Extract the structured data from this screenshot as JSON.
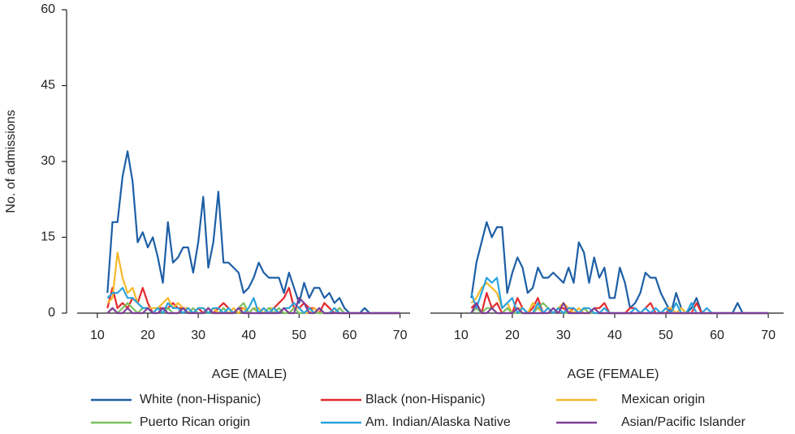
{
  "chart_data": [
    {
      "type": "line",
      "ylabel": "No. of admissions",
      "xlabel": "AGE (MALE)",
      "xlim": [
        6,
        72
      ],
      "xticks": [
        10,
        20,
        30,
        40,
        50,
        60,
        70
      ],
      "ylim": [
        0,
        60
      ],
      "yticks": [
        0,
        15,
        30,
        45,
        60
      ],
      "x": [
        12,
        13,
        14,
        15,
        16,
        17,
        18,
        19,
        20,
        21,
        22,
        23,
        24,
        25,
        26,
        27,
        28,
        29,
        30,
        31,
        32,
        33,
        34,
        35,
        36,
        37,
        38,
        39,
        40,
        41,
        42,
        43,
        44,
        45,
        46,
        47,
        48,
        49,
        50,
        51,
        52,
        53,
        54,
        55,
        56,
        57,
        58,
        59,
        60,
        61,
        62,
        63,
        64,
        65,
        66,
        67,
        68,
        69,
        70
      ],
      "series": [
        {
          "name": "White (non-Hispanic)",
          "color": "#1d5fa6",
          "values": [
            4,
            18,
            18,
            27,
            32,
            26,
            14,
            16,
            13,
            15,
            11,
            6,
            18,
            10,
            11,
            13,
            13,
            8,
            14,
            23,
            9,
            14,
            24,
            10,
            10,
            9,
            8,
            4,
            5,
            7,
            10,
            8,
            7,
            7,
            7,
            4,
            8,
            5,
            2,
            6,
            3,
            5,
            5,
            3,
            4,
            2,
            3,
            1,
            0,
            0,
            0,
            1,
            0,
            0,
            0,
            0,
            0,
            0,
            0
          ]
        },
        {
          "name": "Black (non-Hispanic)",
          "color": "#e42a2d",
          "values": [
            1,
            5,
            1,
            2,
            1,
            3,
            2,
            5,
            2,
            0,
            1,
            1,
            1,
            2,
            1,
            1,
            1,
            0,
            1,
            0,
            1,
            0,
            1,
            2,
            1,
            0,
            1,
            1,
            0,
            1,
            0,
            1,
            0,
            1,
            2,
            3,
            5,
            1,
            1,
            2,
            1,
            1,
            0,
            2,
            1,
            0,
            1,
            0,
            0,
            0,
            0,
            0,
            0,
            0,
            0,
            0,
            0,
            0,
            0
          ]
        },
        {
          "name": "Mexican origin",
          "color": "#f7b92b",
          "values": [
            2,
            3,
            12,
            7,
            4,
            5,
            2,
            1,
            1,
            1,
            1,
            2,
            3,
            1,
            2,
            1,
            1,
            0,
            1,
            1,
            0,
            1,
            0,
            1,
            0,
            1,
            0,
            1,
            0,
            1,
            1,
            0,
            1,
            1,
            0,
            1,
            0,
            1,
            1,
            0,
            0,
            1,
            0,
            0,
            0,
            1,
            0,
            0,
            0,
            0,
            0,
            0,
            0,
            0,
            0,
            0,
            0,
            0,
            0
          ]
        },
        {
          "name": "Puerto Rican origin",
          "color": "#7cc05f",
          "values": [
            0,
            1,
            0,
            1,
            2,
            1,
            0,
            1,
            1,
            0,
            1,
            0,
            1,
            0,
            0,
            1,
            0,
            1,
            0,
            0,
            1,
            0,
            0,
            1,
            0,
            0,
            1,
            2,
            0,
            1,
            0,
            0,
            1,
            0,
            1,
            0,
            0,
            1,
            0,
            0,
            1,
            0,
            0,
            0,
            0,
            0,
            1,
            0,
            0,
            0,
            0,
            0,
            0,
            0,
            0,
            0,
            0,
            0,
            0
          ]
        },
        {
          "name": "Am. Indian/Alaska Native",
          "color": "#2ba3df",
          "values": [
            3,
            4,
            4,
            5,
            3,
            3,
            2,
            1,
            1,
            0,
            1,
            0,
            2,
            1,
            1,
            0,
            1,
            0,
            1,
            1,
            0,
            1,
            1,
            0,
            1,
            0,
            1,
            0,
            1,
            3,
            0,
            1,
            0,
            1,
            0,
            1,
            1,
            2,
            1,
            0,
            1,
            0,
            1,
            0,
            0,
            1,
            0,
            0,
            0,
            0,
            0,
            0,
            0,
            0,
            0,
            0,
            0,
            0,
            0
          ]
        },
        {
          "name": "Asian/Pacific Islander",
          "color": "#7d3f98",
          "values": [
            0,
            1,
            0,
            0,
            1,
            0,
            0,
            0,
            1,
            0,
            0,
            1,
            0,
            0,
            0,
            1,
            0,
            0,
            0,
            0,
            1,
            0,
            0,
            0,
            0,
            0,
            1,
            0,
            0,
            0,
            0,
            0,
            0,
            0,
            0,
            1,
            0,
            0,
            3,
            2,
            0,
            0,
            1,
            0,
            0,
            0,
            0,
            0,
            0,
            0,
            0,
            0,
            0,
            0,
            0,
            0,
            0,
            0,
            0
          ]
        }
      ]
    },
    {
      "type": "line",
      "xlabel": "AGE (FEMALE)",
      "xlim": [
        4,
        73
      ],
      "xticks": [
        10,
        20,
        30,
        40,
        50,
        60,
        70
      ],
      "ylim": [
        0,
        60
      ],
      "x": [
        12,
        13,
        14,
        15,
        16,
        17,
        18,
        19,
        20,
        21,
        22,
        23,
        24,
        25,
        26,
        27,
        28,
        29,
        30,
        31,
        32,
        33,
        34,
        35,
        36,
        37,
        38,
        39,
        40,
        41,
        42,
        43,
        44,
        45,
        46,
        47,
        48,
        49,
        50,
        51,
        52,
        53,
        54,
        55,
        56,
        57,
        58,
        59,
        60,
        61,
        62,
        63,
        64,
        65,
        66,
        67,
        68,
        69,
        70
      ],
      "series": [
        {
          "color": "#1d5fa6",
          "values": [
            3,
            10,
            14,
            18,
            15,
            17,
            17,
            4,
            8,
            11,
            9,
            4,
            5,
            9,
            7,
            7,
            8,
            7,
            6,
            9,
            6,
            14,
            12,
            6,
            11,
            7,
            9,
            3,
            3,
            9,
            6,
            1,
            2,
            4,
            8,
            7,
            7,
            4,
            2,
            0,
            4,
            1,
            0,
            1,
            3,
            0,
            0,
            0,
            0,
            0,
            0,
            0,
            2,
            0,
            0,
            0,
            0,
            0,
            0
          ]
        },
        {
          "color": "#e42a2d",
          "values": [
            1,
            2,
            0,
            4,
            1,
            2,
            0,
            1,
            0,
            3,
            1,
            0,
            1,
            3,
            0,
            1,
            0,
            1,
            1,
            0,
            1,
            0,
            1,
            0,
            1,
            1,
            2,
            0,
            0,
            0,
            0,
            1,
            1,
            0,
            1,
            2,
            0,
            0,
            0,
            1,
            0,
            0,
            0,
            0,
            2,
            0,
            0,
            0,
            0,
            0,
            0,
            0,
            0,
            0,
            0,
            0,
            0,
            0,
            0
          ]
        },
        {
          "color": "#f7b92b",
          "values": [
            2,
            3,
            5,
            6,
            5,
            4,
            1,
            2,
            0,
            1,
            1,
            0,
            2,
            1,
            0,
            1,
            0,
            1,
            2,
            1,
            0,
            1,
            0,
            0,
            1,
            0,
            0,
            0,
            0,
            0,
            0,
            0,
            0,
            0,
            0,
            0,
            0,
            0,
            1,
            1,
            0,
            1,
            0,
            0,
            0,
            0,
            0,
            0,
            0,
            0,
            0,
            0,
            0,
            0,
            0,
            0,
            0,
            0,
            0
          ]
        },
        {
          "color": "#7cc05f",
          "values": [
            0,
            1,
            0,
            1,
            1,
            0,
            0,
            1,
            0,
            0,
            0,
            0,
            0,
            1,
            2,
            1,
            0,
            1,
            0,
            0,
            0,
            0,
            1,
            0,
            0,
            0,
            0,
            0,
            0,
            0,
            0,
            0,
            0,
            0,
            0,
            0,
            0,
            0,
            0,
            0,
            0,
            0,
            0,
            0,
            0,
            0,
            0,
            0,
            0,
            0,
            0,
            0,
            0,
            0,
            0,
            0,
            0,
            0,
            0
          ]
        },
        {
          "color": "#2ba3df",
          "values": [
            4,
            1,
            4,
            7,
            6,
            7,
            1,
            2,
            3,
            0,
            1,
            0,
            0,
            2,
            0,
            1,
            0,
            1,
            0,
            1,
            1,
            0,
            1,
            1,
            0,
            0,
            1,
            0,
            0,
            0,
            0,
            0,
            1,
            0,
            1,
            0,
            1,
            0,
            1,
            0,
            2,
            0,
            0,
            2,
            0,
            0,
            1,
            0,
            0,
            0,
            0,
            0,
            0,
            0,
            0,
            0,
            0,
            0,
            0
          ]
        },
        {
          "color": "#7d3f98",
          "values": [
            0,
            2,
            0,
            0,
            1,
            0,
            0,
            0,
            0,
            1,
            0,
            0,
            0,
            0,
            0,
            0,
            1,
            0,
            2,
            0,
            0,
            0,
            0,
            0,
            1,
            0,
            0,
            0,
            0,
            0,
            0,
            0,
            0,
            0,
            0,
            0,
            0,
            0,
            0,
            0,
            0,
            0,
            0,
            0,
            0,
            0,
            0,
            0,
            0,
            0,
            0,
            0,
            0,
            0,
            0,
            0,
            0,
            0,
            0
          ]
        }
      ]
    }
  ]
}
